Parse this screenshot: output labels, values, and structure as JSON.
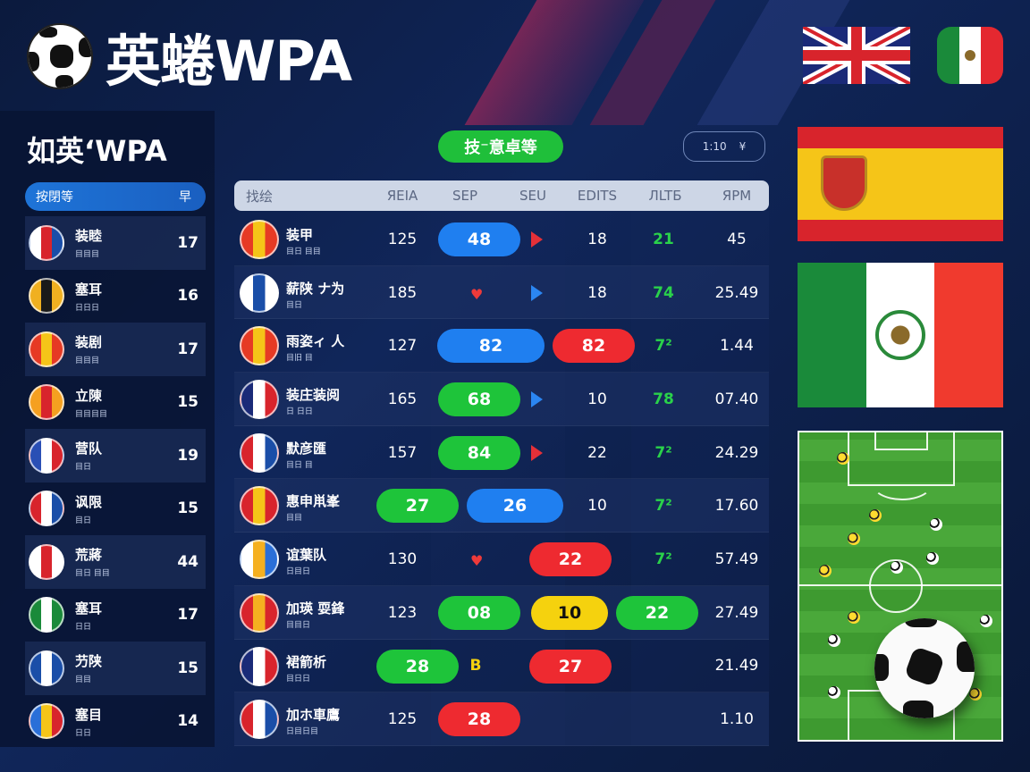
{
  "header": {
    "title": "英蜷WPA"
  },
  "left_panel": {
    "title": "如英‘WPA",
    "head_left": "按閉等",
    "head_right": "早",
    "items": [
      {
        "name": "装睦",
        "sub": "目目目",
        "pts": "17",
        "crest": [
          "#ffffff",
          "#d8242c",
          "#1a4ea8"
        ]
      },
      {
        "name": "塞耳",
        "sub": "日日日",
        "pts": "16",
        "crest": [
          "#f0b020",
          "#1a1a1a",
          "#f0b020"
        ]
      },
      {
        "name": "装剧",
        "sub": "目目目",
        "pts": "17",
        "crest": [
          "#e63a24",
          "#f5c518",
          "#e63a24"
        ]
      },
      {
        "name": "立陳",
        "sub": "目目目目",
        "pts": "15",
        "crest": [
          "#f5a020",
          "#d8242c",
          "#f5a020"
        ]
      },
      {
        "name": "营队",
        "sub": "目日",
        "pts": "19",
        "crest": [
          "#2a4fb5",
          "#ffffff",
          "#d8242c"
        ]
      },
      {
        "name": "讽限",
        "sub": "目日",
        "pts": "15",
        "crest": [
          "#d8242c",
          "#ffffff",
          "#1a4ea8"
        ]
      },
      {
        "name": "荒蔣",
        "sub": "目日 目目",
        "pts": "44",
        "crest": [
          "#ffffff",
          "#d8242c",
          "#ffffff"
        ]
      },
      {
        "name": "塞耳",
        "sub": "日日",
        "pts": "17",
        "crest": [
          "#1a8a3a",
          "#ffffff",
          "#1a8a3a"
        ]
      },
      {
        "name": "芀陕",
        "sub": "目目",
        "pts": "15",
        "crest": [
          "#1a4ea8",
          "#ffffff",
          "#1a4ea8"
        ]
      },
      {
        "name": "塞目",
        "sub": "日日",
        "pts": "14",
        "crest": [
          "#2a6fd8",
          "#f5c518",
          "#d8242c"
        ]
      }
    ]
  },
  "center_pill": "技⁻意卓等",
  "mini_ctrl": {
    "left": "1:10",
    "right": "¥"
  },
  "table": {
    "headers": [
      "找绘",
      "ЯEIA",
      "SEP",
      "SEU",
      "EDITS",
      "ЛLTБ",
      "ЯPM"
    ],
    "rows": [
      {
        "name": "装甲",
        "sub": "目日 目目",
        "c1": "125",
        "c2": {
          "type": "pill",
          "color": "blue",
          "text": "48",
          "x": 536,
          "w": 92
        },
        "c3": {
          "type": "tri",
          "color": "red"
        },
        "c4": "18",
        "c5": "21",
        "c6": "45",
        "crest": [
          "#e63a24",
          "#f5c518",
          "#e63a24"
        ]
      },
      {
        "name": "薪陕 ナ为",
        "sub": "目日",
        "c1": "185",
        "c2": {
          "type": "heart"
        },
        "c3": {
          "type": "tri",
          "color": "blue"
        },
        "c4": "18",
        "c5": "74",
        "c6": "25.49",
        "crest": [
          "#ffffff",
          "#1a4ea8",
          "#ffffff"
        ]
      },
      {
        "name": "雨姿ィ 人",
        "sub": "目旧 目",
        "c1": "127",
        "c2": {
          "type": "pill",
          "color": "blue",
          "text": "82",
          "x": 549,
          "w": 120
        },
        "c3": {
          "type": "pill",
          "color": "red",
          "text": "82",
          "x": 664,
          "w": 92
        },
        "c4": null,
        "c5": "7²",
        "c6": "1.44",
        "crest": [
          "#e63a24",
          "#f5c518",
          "#e63a24"
        ]
      },
      {
        "name": "装庄装阅",
        "sub": "日 日日",
        "c1": "165",
        "c2": {
          "type": "pill",
          "color": "green",
          "text": "68",
          "x": 536,
          "w": 92
        },
        "c3": {
          "type": "tri",
          "color": "blue"
        },
        "c4": "10",
        "c5": "78",
        "c6": "07.40",
        "crest": [
          "#1a2a78",
          "#ffffff",
          "#d8242c"
        ]
      },
      {
        "name": "默彦匯",
        "sub": "目日 目",
        "c1": "157",
        "c2": {
          "type": "pill",
          "color": "green",
          "text": "84",
          "x": 536,
          "w": 92
        },
        "c3": {
          "type": "tri",
          "color": "red"
        },
        "c4": "22",
        "c5": "7²",
        "c6": "24.29",
        "crest": [
          "#d8242c",
          "#ffffff",
          "#1a4ea8"
        ]
      },
      {
        "name": "惠申鼡峯",
        "sub": "目目",
        "c1": {
          "type": "pill",
          "color": "green",
          "text": "27",
          "x": 467,
          "w": 92
        },
        "c2": {
          "type": "pill",
          "color": "blue",
          "text": "26",
          "x": 576,
          "w": 108
        },
        "c3": null,
        "c4": "10",
        "c5": "7²",
        "c6": "17.60",
        "crest": [
          "#d8242c",
          "#f5c518",
          "#d8242c"
        ]
      },
      {
        "name": "谊葉队",
        "sub": "日目日",
        "c1": "130",
        "c2": {
          "type": "heart"
        },
        "c3": {
          "type": "pill",
          "color": "red",
          "text": "22",
          "x": 638,
          "w": 92
        },
        "c4": null,
        "c5": "7²",
        "c6": "57.49",
        "crest": [
          "#ffffff",
          "#f5b020",
          "#2a6fd8"
        ]
      },
      {
        "name": "加瑛 耍鋒",
        "sub": "目目日",
        "c1": "123",
        "c2": {
          "type": "pill",
          "color": "green",
          "text": "08",
          "x": 536,
          "w": 92
        },
        "c3": {
          "type": "pill",
          "color": "yellow",
          "text": "10",
          "x": 637,
          "w": 86
        },
        "c4": {
          "type": "pill",
          "color": "green",
          "text": "22",
          "x": 735,
          "w": 92
        },
        "c5": null,
        "c6": "27.49",
        "crest": [
          "#d8242c",
          "#f5b020",
          "#d8242c"
        ]
      },
      {
        "name": "裙箭析",
        "sub": "目日日",
        "c1": {
          "type": "pill",
          "color": "green",
          "text": "28",
          "x": 467,
          "w": 92
        },
        "c2": {
          "type": "glyph",
          "text": "B"
        },
        "c3": {
          "type": "pill",
          "color": "red",
          "text": "27",
          "x": 638,
          "w": 92
        },
        "c4": null,
        "c5": null,
        "c6": "21.49",
        "crest": [
          "#1a2a78",
          "#ffffff",
          "#d8242c"
        ]
      },
      {
        "name": "加ホ車鷹",
        "sub": "日目日目",
        "c1": "125",
        "c2": {
          "type": "pill",
          "color": "red",
          "text": "28",
          "x": 536,
          "w": 92
        },
        "c3": null,
        "c4": null,
        "c5": null,
        "c6": "1.10",
        "crest": [
          "#d8242c",
          "#ffffff",
          "#1a4ea8"
        ]
      }
    ]
  },
  "colors": {
    "accent_blue": "#1f7ff0",
    "accent_green": "#1ec43a",
    "accent_red": "#ee2a30",
    "accent_yellow": "#f5d20e"
  }
}
